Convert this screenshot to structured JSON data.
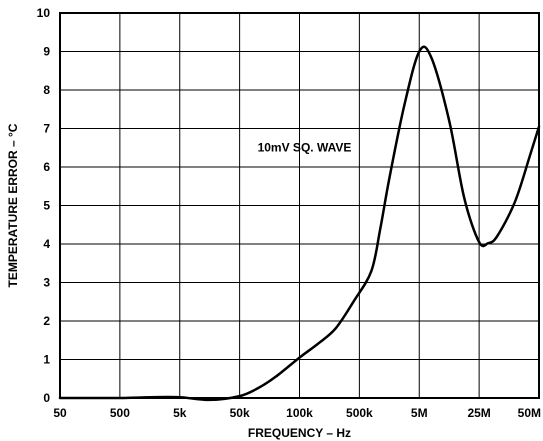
{
  "chart_data": {
    "type": "line",
    "title": "",
    "xlabel": "FREQUENCY – Hz",
    "ylabel": "TEMPERATURE ERROR – °C",
    "x_tick_labels": [
      "50",
      "500",
      "5k",
      "50k",
      "100k",
      "500k",
      "5M",
      "25M",
      "50M"
    ],
    "y_ticks": [
      0,
      1,
      2,
      3,
      4,
      5,
      6,
      7,
      8,
      9,
      10
    ],
    "ylim": [
      0,
      10
    ],
    "grid": true,
    "annotation": {
      "text": "10mV SQ. WAVE",
      "x_index": 3.3,
      "y": 6.4
    },
    "series": [
      {
        "x_index": [
          0,
          0.5,
          1,
          1.5,
          2,
          2.5,
          3,
          3.3,
          3.6,
          4,
          4.3,
          4.6,
          4.9,
          5.2,
          5.35,
          5.5,
          5.75,
          6,
          6.2,
          6.5,
          6.75,
          7,
          7.15,
          7.3,
          7.6,
          7.85,
          8
        ],
        "y": [
          0,
          0,
          0,
          0.02,
          0.02,
          -0.05,
          0.05,
          0.25,
          0.55,
          1.05,
          1.4,
          1.8,
          2.5,
          3.3,
          4.4,
          5.7,
          7.6,
          9.0,
          8.85,
          7.2,
          5.2,
          4.05,
          4.02,
          4.2,
          5.1,
          6.3,
          7.05
        ]
      }
    ]
  }
}
